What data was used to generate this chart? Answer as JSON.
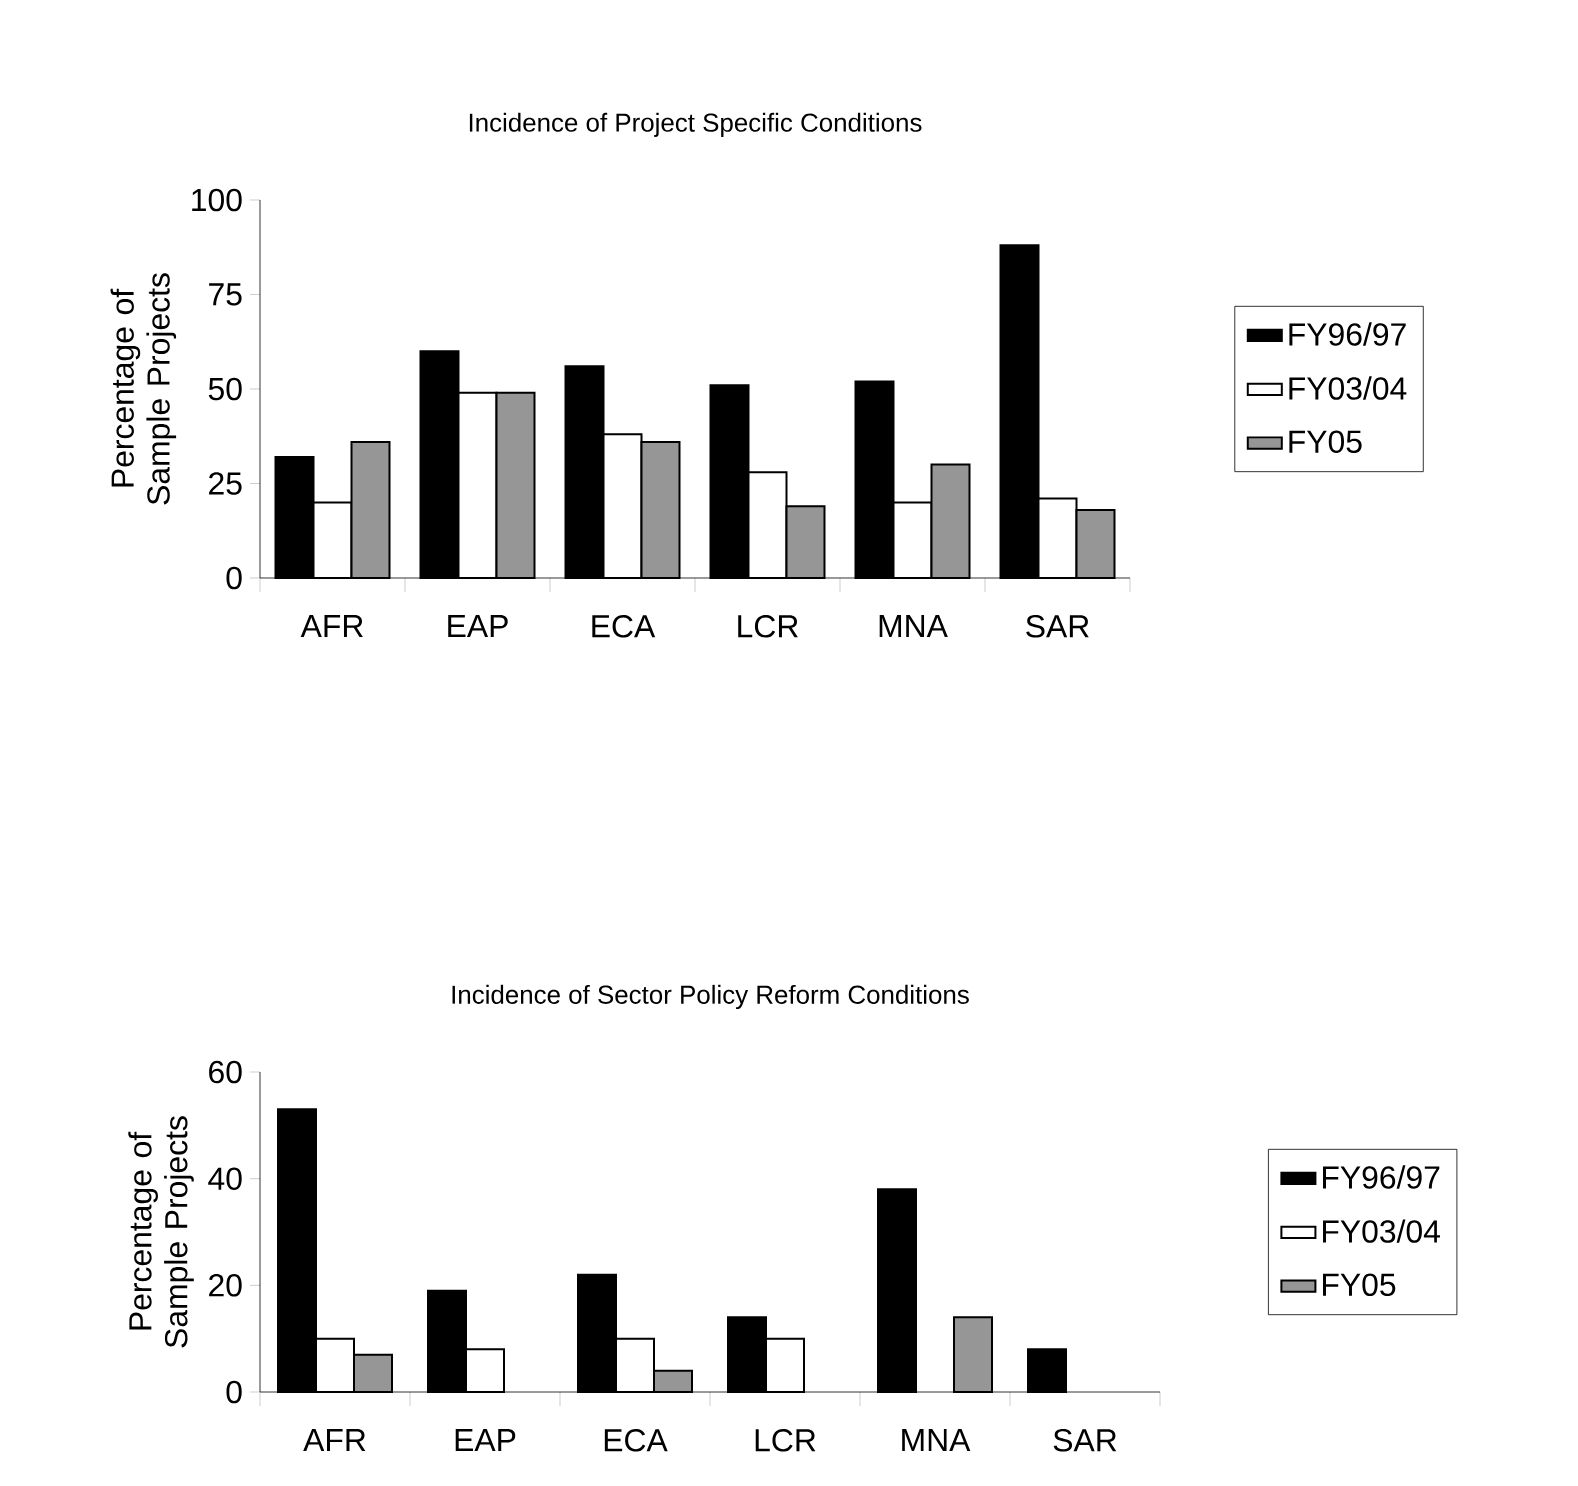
{
  "chart_data": [
    {
      "type": "bar",
      "title": "Incidence of Project Specific Conditions",
      "ylabel": "Percentage of Sample Projects",
      "categories": [
        "AFR",
        "EAP",
        "ECA",
        "LCR",
        "MNA",
        "SAR"
      ],
      "series": [
        {
          "name": "FY96/97",
          "color": "#000000",
          "values": [
            32,
            60,
            56,
            51,
            52,
            88
          ]
        },
        {
          "name": "FY03/04",
          "color": "#ffffff",
          "values": [
            20,
            49,
            38,
            28,
            20,
            21
          ]
        },
        {
          "name": "FY05",
          "color": "#969696",
          "values": [
            36,
            49,
            36,
            19,
            30,
            18
          ]
        }
      ],
      "ylim": [
        0,
        100
      ],
      "yticks": [
        0,
        25,
        50,
        75,
        100
      ],
      "legend": "right"
    },
    {
      "type": "bar",
      "title": "Incidence of Sector Policy Reform Conditions",
      "ylabel": "Percentage of Sample Projects",
      "categories": [
        "AFR",
        "EAP",
        "ECA",
        "LCR",
        "MNA",
        "SAR"
      ],
      "series": [
        {
          "name": "FY96/97",
          "color": "#000000",
          "values": [
            53,
            19,
            22,
            14,
            38,
            8
          ]
        },
        {
          "name": "FY03/04",
          "color": "#ffffff",
          "values": [
            10,
            8,
            10,
            10,
            null,
            null
          ]
        },
        {
          "name": "FY05",
          "color": "#969696",
          "values": [
            7,
            null,
            4,
            null,
            14,
            null
          ]
        }
      ],
      "ylim": [
        0,
        60
      ],
      "yticks": [
        0,
        20,
        40,
        60
      ],
      "legend": "right"
    }
  ]
}
